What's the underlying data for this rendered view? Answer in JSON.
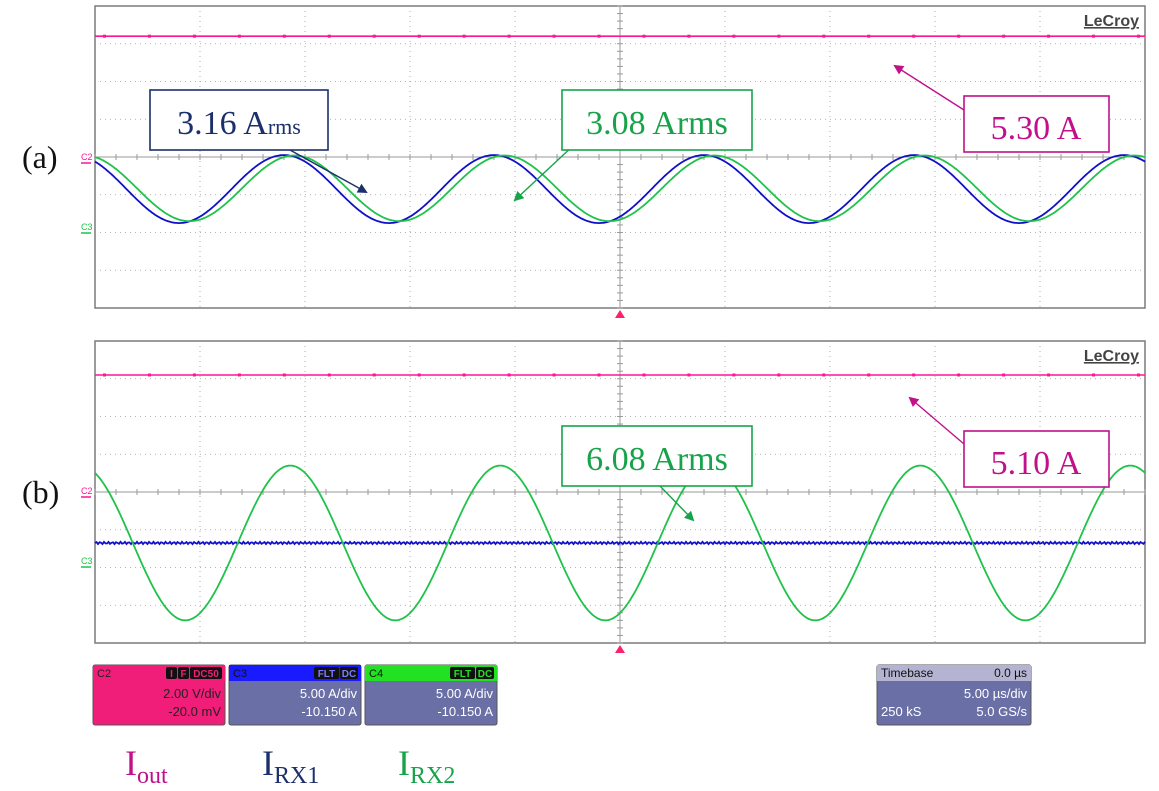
{
  "brand": "LeCroy",
  "colors": {
    "iout": "#ff1493",
    "irx1": "#1010c8",
    "irx2": "#1fc24a",
    "label_iout": "#c0108a",
    "label_irx1": "#1c2f6b",
    "label_irx2": "#17a34a",
    "grid": "#9a9a9a",
    "frame": "#7a7a7a",
    "marker": "#ff1f6e",
    "box_c2": "#f01e78",
    "box_c3_header": "#1a1aff",
    "box_c4_header": "#22e022",
    "box_body": "#6a70a6",
    "box_tb_header": "#b4b4d2"
  },
  "chart_data": [
    {
      "type": "line",
      "panel_label": "(a)",
      "x_unit": "µs",
      "x_range": [
        -25,
        25
      ],
      "y_unit": "div",
      "y_range": [
        -4,
        4
      ],
      "grid": true,
      "channel_tags": [
        "C2",
        "C3"
      ],
      "series": [
        {
          "name": "Iout",
          "channel": "C2",
          "kind": "dc",
          "level_div": 3.2
        },
        {
          "name": "IRX1",
          "channel": "C3",
          "kind": "sine",
          "amplitude_div": 0.9,
          "offset_div": -0.85,
          "period_us": 10.0,
          "phase_us": 1.5
        },
        {
          "name": "IRX2",
          "channel": "C4",
          "kind": "sine",
          "amplitude_div": 0.87,
          "offset_div": -0.83,
          "period_us": 10.0,
          "phase_us": 2.0
        }
      ],
      "annotations": [
        {
          "text_main": "3.16 A",
          "text_sub": "rms",
          "series": "IRX1"
        },
        {
          "text_main": "3.08 Arms",
          "text_sub": "",
          "series": "IRX2"
        },
        {
          "text_main": "5.30 A",
          "text_sub": "",
          "series": "Iout"
        }
      ]
    },
    {
      "type": "line",
      "panel_label": "(b)",
      "x_unit": "µs",
      "x_range": [
        -25,
        25
      ],
      "y_unit": "div",
      "y_range": [
        -4,
        4
      ],
      "grid": true,
      "channel_tags": [
        "C2",
        "C3"
      ],
      "series": [
        {
          "name": "Iout",
          "channel": "C2",
          "kind": "dc",
          "level_div": 3.1
        },
        {
          "name": "IRX1",
          "channel": "C3",
          "kind": "flat",
          "level_div": -1.35
        },
        {
          "name": "IRX2",
          "channel": "C4",
          "kind": "sine",
          "amplitude_div": 2.05,
          "offset_div": -1.35,
          "period_us": 10.0,
          "phase_us": 1.8
        }
      ],
      "annotations": [
        {
          "text_main": "6.08 Arms",
          "text_sub": "",
          "series": "IRX2"
        },
        {
          "text_main": "5.10 A",
          "text_sub": "",
          "series": "Iout"
        }
      ]
    }
  ],
  "channel_boxes": [
    {
      "id": "c2",
      "channel": "C2",
      "tags": [
        "I",
        "F",
        "DC50"
      ],
      "scale": "2.00 V/div",
      "offset": "-20.0 mV"
    },
    {
      "id": "c3",
      "channel": "C3",
      "tags": [
        "FLT",
        "DC"
      ],
      "scale": "5.00 A/div",
      "offset": "-10.150 A"
    },
    {
      "id": "c4",
      "channel": "C4",
      "tags": [
        "FLT",
        "DC"
      ],
      "scale": "5.00 A/div",
      "offset": "-10.150 A"
    }
  ],
  "timebase": {
    "label": "Timebase",
    "delay": "0.0 µs",
    "div": "5.00 µs/div",
    "samples": "250 kS",
    "rate": "5.0 GS/s"
  },
  "legend": [
    {
      "base": "I",
      "sub": "out",
      "series": "Iout"
    },
    {
      "base": "I",
      "sub": "RX1",
      "series": "IRX1"
    },
    {
      "base": "I",
      "sub": "RX2",
      "series": "IRX2"
    }
  ]
}
